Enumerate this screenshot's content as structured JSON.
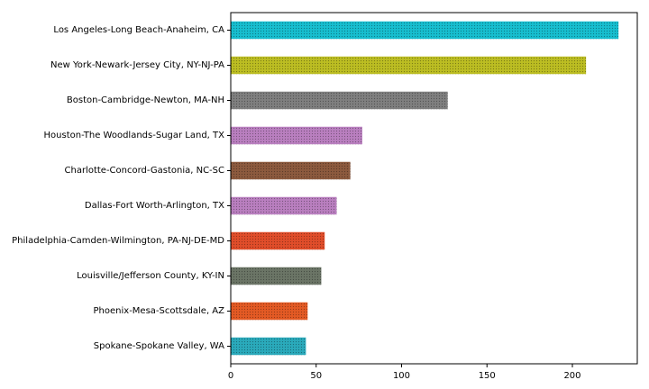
{
  "chart_data": {
    "type": "bar",
    "orientation": "horizontal",
    "title": "",
    "xlabel": "",
    "ylabel": "",
    "xlim": [
      0,
      238
    ],
    "xticks": [
      0,
      50,
      100,
      150,
      200
    ],
    "grid": false,
    "legend": "none",
    "categories": [
      "Los Angeles-Long Beach-Anaheim, CA",
      "New York-Newark-Jersey City, NY-NJ-PA",
      "Boston-Cambridge-Newton, MA-NH",
      "Houston-The Woodlands-Sugar Land, TX",
      "Charlotte-Concord-Gastonia, NC-SC",
      "Dallas-Fort Worth-Arlington, TX",
      "Philadelphia-Camden-Wilmington, PA-NJ-DE-MD",
      "Louisville/Jefferson County, KY-IN",
      "Phoenix-Mesa-Scottsdale, AZ",
      "Spokane-Spokane Valley, WA"
    ],
    "values": [
      227,
      208,
      127,
      77,
      70,
      62,
      55,
      53,
      45,
      44
    ],
    "colors": [
      "#17becf",
      "#bcbd22",
      "#7f7f7f",
      "#b97fbf",
      "#8c5a3e",
      "#b97fbf",
      "#e04d2a",
      "#6b7566",
      "#e35a24",
      "#2aaabb"
    ]
  }
}
